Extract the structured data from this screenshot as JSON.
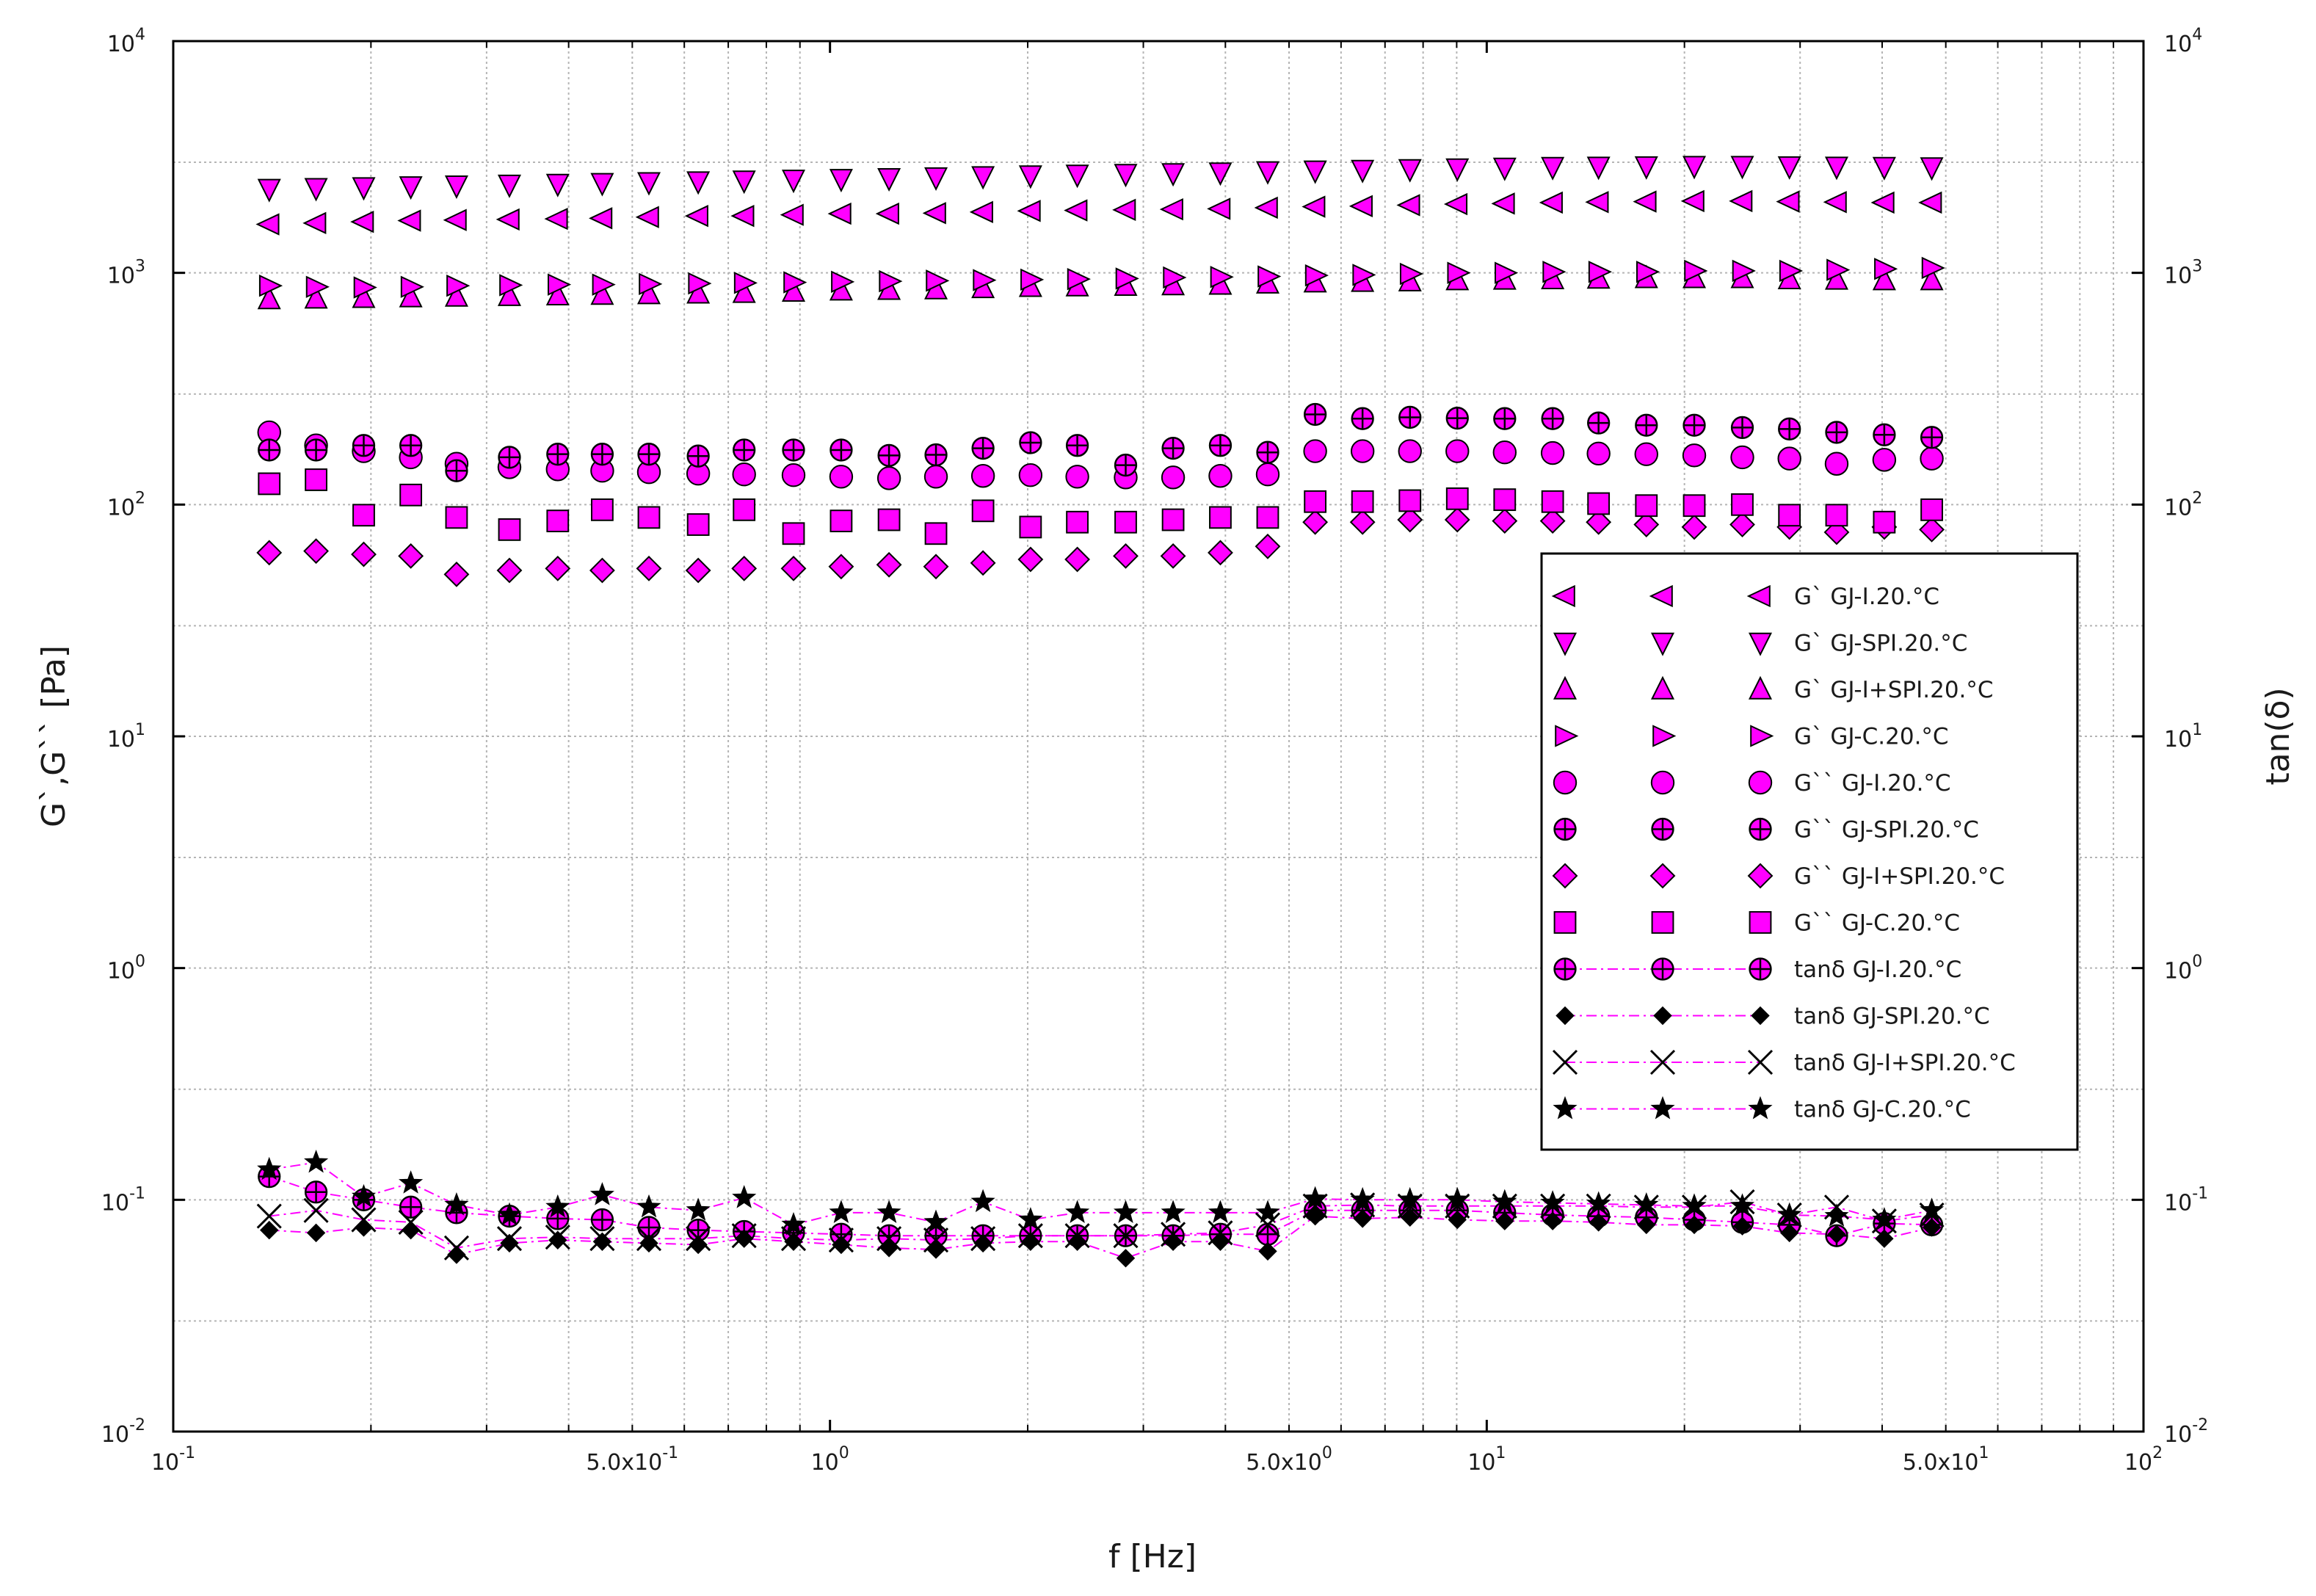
{
  "chart_data": {
    "type": "scatter",
    "scale": "log-log",
    "xlabel": "f [Hz]",
    "ylabel": "G`,G`` [Pa]",
    "y2label": "tan(δ)",
    "xlim": [
      0.1,
      100
    ],
    "ylim": [
      0.01,
      10000
    ],
    "y2lim": [
      0.01,
      10000
    ],
    "grid": true,
    "legend_position": "right",
    "x_ticks": [
      {
        "base": "10",
        "exp": "-1"
      },
      {
        "text": "5.0x10",
        "exp": "-1"
      },
      {
        "base": "10",
        "exp": "0"
      },
      {
        "text": "5.0x10",
        "exp": "0"
      },
      {
        "base": "10",
        "exp": "1"
      },
      {
        "text": "5.0x10",
        "exp": "1"
      },
      {
        "base": "10",
        "exp": "2"
      }
    ],
    "y_ticks": [
      {
        "base": "10",
        "exp": "-2"
      },
      {
        "base": "10",
        "exp": "-1"
      },
      {
        "base": "10",
        "exp": "0"
      },
      {
        "base": "10",
        "exp": "1"
      },
      {
        "base": "10",
        "exp": "2"
      },
      {
        "base": "10",
        "exp": "3"
      },
      {
        "base": "10",
        "exp": "4"
      }
    ],
    "x": [
      0.14,
      0.165,
      0.195,
      0.23,
      0.27,
      0.325,
      0.385,
      0.45,
      0.53,
      0.63,
      0.74,
      0.88,
      1.04,
      1.23,
      1.45,
      1.71,
      2.02,
      2.38,
      2.82,
      3.33,
      3.93,
      4.64,
      5.48,
      6.47,
      7.64,
      9.02,
      10.65,
      12.6,
      14.8,
      17.5,
      20.7,
      24.5,
      28.9,
      34.1,
      40.3,
      47.6
    ],
    "series": [
      {
        "name": "G` GJ-I.20.°C",
        "axis": "left",
        "marker": "triangle-left",
        "color": "#ff00ff",
        "line": false,
        "values": [
          1620,
          1640,
          1660,
          1680,
          1690,
          1700,
          1710,
          1720,
          1740,
          1760,
          1760,
          1780,
          1800,
          1800,
          1810,
          1830,
          1850,
          1860,
          1870,
          1880,
          1890,
          1910,
          1930,
          1940,
          1960,
          1980,
          1990,
          2010,
          2020,
          2030,
          2040,
          2040,
          2030,
          2020,
          2010,
          2010
        ]
      },
      {
        "name": "G` GJ-SPI.20.°C",
        "axis": "left",
        "marker": "triangle-down",
        "color": "#ff00ff",
        "line": false,
        "values": [
          2300,
          2320,
          2340,
          2360,
          2380,
          2400,
          2420,
          2440,
          2460,
          2480,
          2500,
          2520,
          2540,
          2560,
          2580,
          2610,
          2630,
          2650,
          2670,
          2690,
          2710,
          2740,
          2760,
          2780,
          2800,
          2820,
          2840,
          2860,
          2870,
          2880,
          2890,
          2890,
          2880,
          2870,
          2860,
          2850
        ]
      },
      {
        "name": "G` GJ-I+SPI.20.°C",
        "axis": "left",
        "marker": "triangle-up",
        "color": "#ff00ff",
        "line": false,
        "values": [
          770,
          775,
          780,
          785,
          790,
          795,
          800,
          805,
          810,
          815,
          820,
          830,
          840,
          845,
          850,
          860,
          870,
          875,
          880,
          885,
          890,
          900,
          910,
          915,
          920,
          930,
          935,
          940,
          945,
          950,
          950,
          950,
          940,
          935,
          930,
          930
        ]
      },
      {
        "name": "G` GJ-C.20.°C",
        "axis": "left",
        "marker": "triangle-right",
        "color": "#ff00ff",
        "line": false,
        "values": [
          880,
          870,
          865,
          870,
          880,
          885,
          890,
          890,
          895,
          900,
          905,
          910,
          915,
          920,
          925,
          930,
          935,
          940,
          945,
          955,
          960,
          965,
          975,
          980,
          990,
          1000,
          1000,
          1010,
          1010,
          1010,
          1020,
          1020,
          1020,
          1030,
          1040,
          1050
        ]
      },
      {
        "name": "G`` GJ-I.20.°C",
        "axis": "left",
        "marker": "circle",
        "color": "#ff00ff",
        "line": false,
        "values": [
          205,
          180,
          170,
          160,
          150,
          145,
          142,
          140,
          138,
          136,
          135,
          134,
          132,
          130,
          132,
          133,
          134,
          132,
          131,
          131,
          133,
          135,
          170,
          170,
          170,
          170,
          168,
          167,
          166,
          165,
          163,
          160,
          158,
          150,
          156,
          158
        ]
      },
      {
        "name": "G`` GJ-SPI.20.°C",
        "axis": "left",
        "marker": "circle-plus",
        "color": "#ff00ff",
        "line": false,
        "values": [
          172,
          172,
          180,
          180,
          140,
          160,
          165,
          165,
          165,
          162,
          172,
          172,
          172,
          163,
          164,
          175,
          185,
          180,
          148,
          175,
          180,
          168,
          245,
          235,
          238,
          236,
          235,
          235,
          225,
          220,
          220,
          215,
          212,
          205,
          200,
          195
        ]
      },
      {
        "name": "G`` GJ-I+SPI.20.°C",
        "axis": "left",
        "marker": "diamond",
        "color": "#ff00ff",
        "line": false,
        "values": [
          62,
          63,
          61,
          60,
          50,
          52,
          53,
          52,
          53,
          52,
          53,
          53,
          54,
          55,
          54,
          56,
          58,
          58,
          60,
          60,
          62,
          66,
          84,
          84,
          86,
          86,
          85,
          85,
          84,
          82,
          80,
          82,
          80,
          76,
          80,
          78
        ]
      },
      {
        "name": "G`` GJ-C.20.°C",
        "axis": "left",
        "marker": "square",
        "color": "#ff00ff",
        "line": false,
        "values": [
          123,
          128,
          90,
          110,
          88,
          78,
          85,
          95,
          88,
          82,
          95,
          75,
          85,
          86,
          75,
          94,
          80,
          84,
          84,
          86,
          88,
          88,
          103,
          103,
          104,
          106,
          105,
          103,
          101,
          99,
          99,
          100,
          90,
          90,
          84,
          95
        ]
      },
      {
        "name": "tanδ GJ-I.20.°C",
        "axis": "right",
        "marker": "circle-plus",
        "color": "#ff00ff",
        "line": true,
        "values": [
          0.126,
          0.108,
          0.1,
          0.093,
          0.088,
          0.085,
          0.083,
          0.082,
          0.076,
          0.074,
          0.073,
          0.072,
          0.071,
          0.07,
          0.07,
          0.07,
          0.07,
          0.07,
          0.07,
          0.07,
          0.071,
          0.071,
          0.09,
          0.09,
          0.09,
          0.09,
          0.088,
          0.086,
          0.085,
          0.084,
          0.082,
          0.08,
          0.078,
          0.07,
          0.079,
          0.078
        ]
      },
      {
        "name": "tanδ GJ-SPI.20.°C",
        "axis": "right",
        "marker": "diamond-small",
        "color": "#000000",
        "line": true,
        "values": [
          0.074,
          0.072,
          0.076,
          0.074,
          0.058,
          0.065,
          0.067,
          0.066,
          0.065,
          0.064,
          0.068,
          0.066,
          0.064,
          0.062,
          0.061,
          0.065,
          0.066,
          0.066,
          0.056,
          0.066,
          0.066,
          0.06,
          0.085,
          0.083,
          0.084,
          0.082,
          0.081,
          0.081,
          0.08,
          0.078,
          0.078,
          0.077,
          0.072,
          0.071,
          0.068,
          0.076
        ]
      },
      {
        "name": "tanδ GJ-I+SPI.20.°C",
        "axis": "right",
        "marker": "cross",
        "color": "#000000",
        "line": true,
        "values": [
          0.085,
          0.09,
          0.082,
          0.08,
          0.062,
          0.068,
          0.069,
          0.068,
          0.068,
          0.068,
          0.07,
          0.068,
          0.067,
          0.068,
          0.067,
          0.068,
          0.07,
          0.07,
          0.07,
          0.071,
          0.072,
          0.078,
          0.094,
          0.095,
          0.094,
          0.094,
          0.094,
          0.094,
          0.094,
          0.093,
          0.093,
          0.098,
          0.086,
          0.093,
          0.081,
          0.086
        ]
      },
      {
        "name": "tanδ GJ-C.20.°C",
        "axis": "right",
        "marker": "star",
        "color": "#000000",
        "line": true,
        "values": [
          0.135,
          0.145,
          0.103,
          0.118,
          0.095,
          0.086,
          0.093,
          0.105,
          0.093,
          0.09,
          0.102,
          0.078,
          0.088,
          0.088,
          0.08,
          0.098,
          0.082,
          0.088,
          0.088,
          0.088,
          0.088,
          0.088,
          0.101,
          0.1,
          0.1,
          0.1,
          0.098,
          0.097,
          0.096,
          0.095,
          0.094,
          0.094,
          0.086,
          0.085,
          0.082,
          0.09
        ]
      }
    ]
  }
}
